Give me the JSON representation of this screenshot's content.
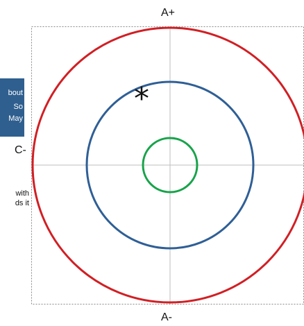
{
  "axes": {
    "top": "A+",
    "bottom": "A-",
    "left": "C-"
  },
  "side_texts": {
    "blue_lines": [
      "bout",
      "So",
      "May"
    ],
    "black_lines": [
      "with",
      "ds it"
    ]
  },
  "marker": "*",
  "colors": {
    "outer_ring": "#d11f24",
    "middle_ring": "#2f5f96",
    "inner_ring": "#17a34a",
    "crosshair": "#bdbdbd",
    "frame": "#888888",
    "note_background": "#2f5f8f"
  }
}
